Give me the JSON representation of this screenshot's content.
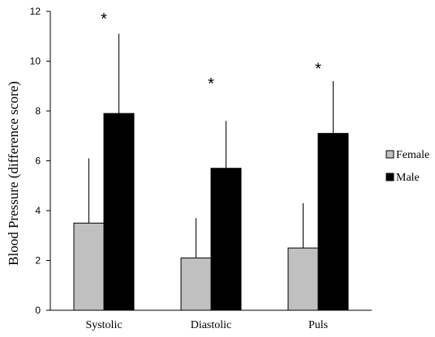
{
  "chart_data": {
    "type": "bar",
    "categories": [
      "Systolic",
      "Diastolic",
      "Puls"
    ],
    "series": [
      {
        "name": "Female",
        "color": "#c0c0c0",
        "values": [
          3.5,
          2.1,
          2.5
        ],
        "error_plus": [
          2.6,
          1.6,
          1.8
        ]
      },
      {
        "name": "Male",
        "color": "#000000",
        "values": [
          7.9,
          5.7,
          7.1
        ],
        "error_plus": [
          3.2,
          1.9,
          2.1
        ]
      }
    ],
    "ylabel": "Blood Pressure (difference score)",
    "xlabel": "",
    "ylim": [
      0,
      12
    ],
    "yticks": [
      0,
      2,
      4,
      6,
      8,
      10,
      12
    ],
    "grid": false,
    "legend": "right",
    "annotations": [
      {
        "category": "Systolic",
        "text": "*",
        "y": 11.8
      },
      {
        "category": "Diastolic",
        "text": "*",
        "y": 9.2
      },
      {
        "category": "Puls",
        "text": "*",
        "y": 9.8
      }
    ]
  }
}
